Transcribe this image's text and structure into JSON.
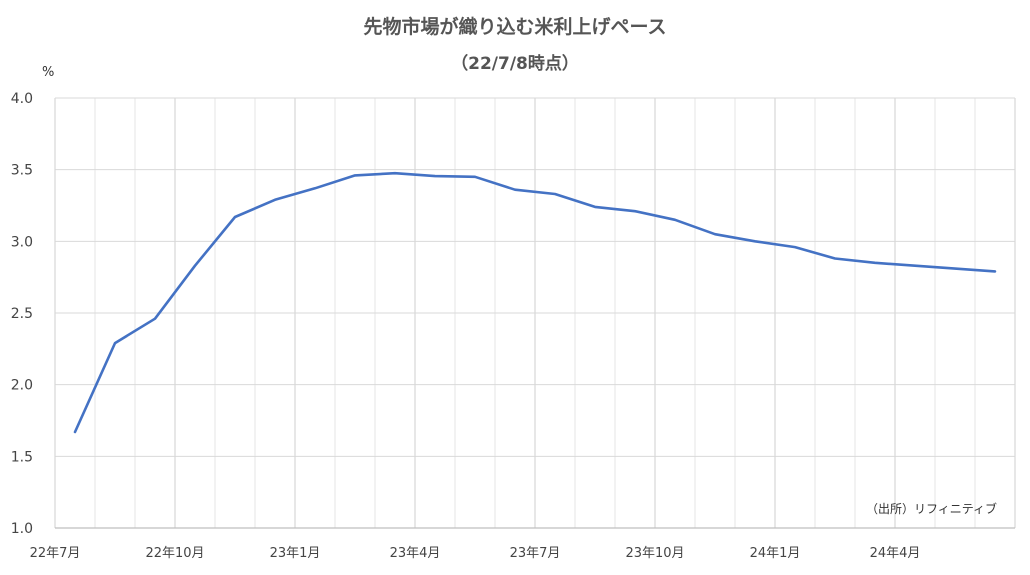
{
  "chart_data": {
    "type": "line",
    "title": "先物市場が織り込む米利上げペース",
    "subtitle": "（22/7/8時点）",
    "ylabel": "%",
    "source": "（出所）リフィニティブ",
    "ylim": [
      1.0,
      4.0
    ],
    "y_ticks": [
      "4.0",
      "3.5",
      "3.0",
      "2.5",
      "2.0",
      "1.5",
      "1.0"
    ],
    "x_tick_labels": [
      "22年7月",
      "22年10月",
      "23年1月",
      "23年4月",
      "23年7月",
      "23年10月",
      "24年1月",
      "24年4月"
    ],
    "grid": true,
    "line_color": "#4472C4",
    "series": [
      {
        "values": [
          1.67,
          2.29,
          2.46,
          2.83,
          3.17,
          3.29,
          3.37,
          3.46,
          3.475,
          3.455,
          3.45,
          3.36,
          3.33,
          3.24,
          3.21,
          3.15,
          3.05,
          3.0,
          2.96,
          2.88,
          2.85,
          2.83,
          2.81,
          2.79
        ]
      }
    ]
  }
}
